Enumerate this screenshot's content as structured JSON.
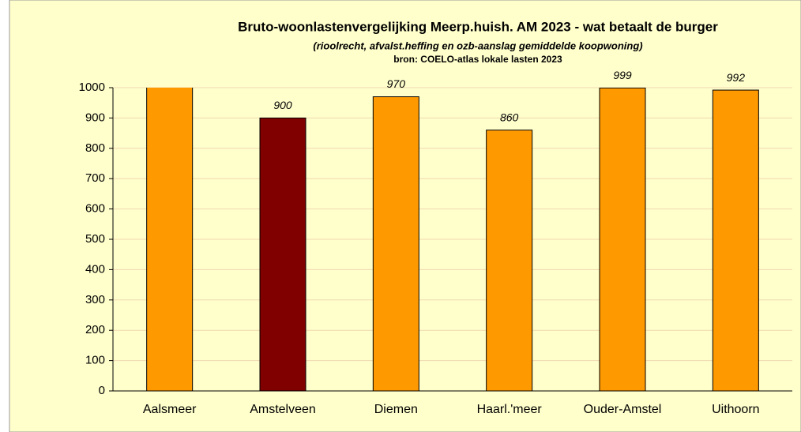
{
  "chart_data": {
    "type": "bar",
    "title": "Bruto-woonlastenvergelijking Meerp.huish. AM 2023 - wat betaalt de burger",
    "subtitle": "(rioolrecht, afvalst.heffing  en ozb-aanslag gemiddelde  koopwoning)",
    "source": "bron: COELO-atlas lokale lasten 2023",
    "categories": [
      "Aalsmeer",
      "Amstelveen",
      "Diemen",
      "Haarl.'meer",
      "Ouder-Amstel",
      "Uithoorn"
    ],
    "values": [
      1050,
      900,
      970,
      860,
      999,
      992
    ],
    "colors": [
      "#ff9900",
      "#800000",
      "#ff9900",
      "#ff9900",
      "#ff9900",
      "#ff9900"
    ],
    "ylim": [
      0,
      1000
    ],
    "yticks": [
      0,
      100,
      200,
      300,
      400,
      500,
      600,
      700,
      800,
      900,
      1000
    ],
    "grid": true
  }
}
